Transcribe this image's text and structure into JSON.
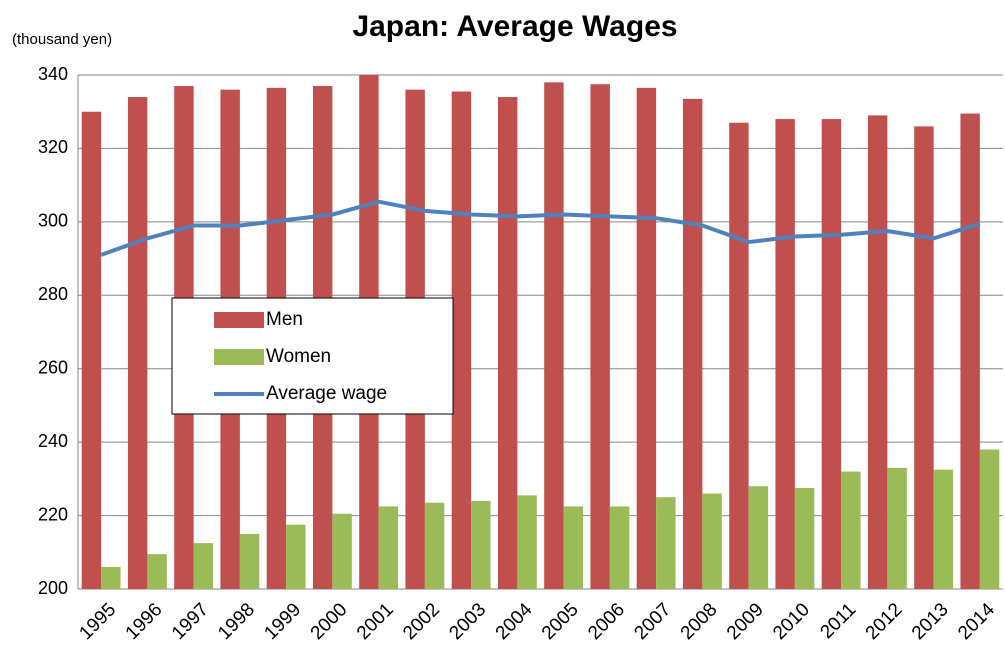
{
  "chart_data": {
    "type": "bar",
    "title": "Japan: Average Wages",
    "y_axis_label": "(thousand yen)",
    "categories": [
      "1995",
      "1996",
      "1997",
      "1998",
      "1999",
      "2000",
      "2001",
      "2002",
      "2003",
      "2004",
      "2005",
      "2006",
      "2007",
      "2008",
      "2009",
      "2010",
      "2011",
      "2012",
      "2013",
      "2014"
    ],
    "series": [
      {
        "name": "Men",
        "type": "bar",
        "color": "#c0504d",
        "values": [
          330,
          334,
          337,
          336,
          336.5,
          337,
          340,
          336,
          335.5,
          334,
          338,
          337.5,
          336.5,
          333.5,
          327,
          328,
          328,
          329,
          326,
          329.5
        ]
      },
      {
        "name": "Women",
        "type": "bar",
        "color": "#9bbb59",
        "values": [
          206,
          209.5,
          212.5,
          215,
          217.5,
          220.5,
          222.5,
          223.5,
          224,
          225.5,
          222.5,
          222.5,
          225,
          226,
          228,
          227.5,
          232,
          233,
          232.5,
          238
        ]
      },
      {
        "name": "Average wage",
        "type": "line",
        "color": "#4f81bd",
        "values": [
          291,
          295.5,
          299,
          299,
          300.5,
          302,
          305.5,
          303,
          302,
          301.5,
          302,
          301.5,
          301,
          299,
          294.5,
          296,
          296.5,
          297.5,
          295.5,
          299.5
        ]
      }
    ],
    "ylim": [
      200,
      340
    ],
    "yticks": [
      200,
      220,
      240,
      260,
      280,
      300,
      320,
      340
    ],
    "grid": true
  }
}
